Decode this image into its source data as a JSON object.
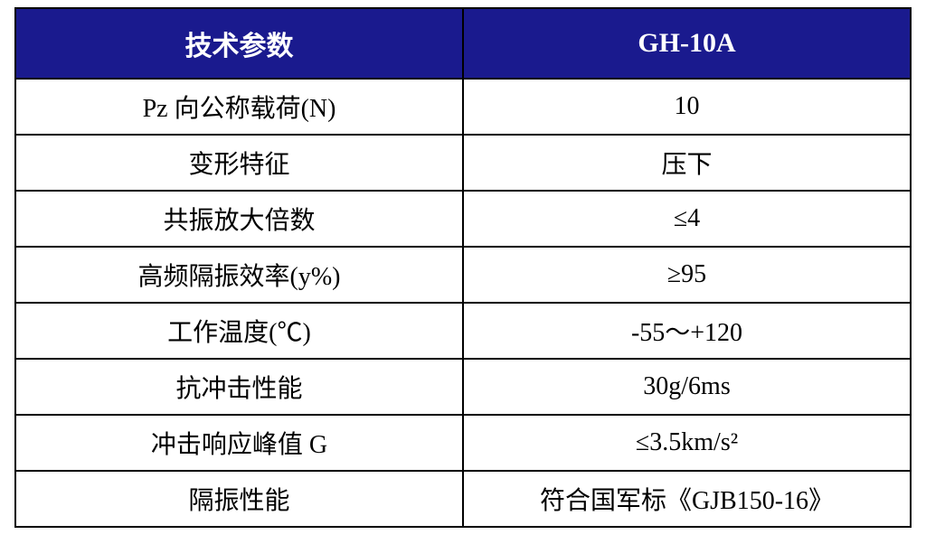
{
  "table": {
    "header_bg_color": "#1a1a8e",
    "header_text_color": "#ffffff",
    "cell_bg_color": "#ffffff",
    "cell_text_color": "#000000",
    "border_color": "#000000",
    "header_fontsize": 30,
    "cell_fontsize": 28,
    "columns": [
      "技术参数",
      "GH-10A"
    ],
    "rows": [
      [
        "Pz 向公称载荷(N)",
        "10"
      ],
      [
        "变形特征",
        "压下"
      ],
      [
        "共振放大倍数",
        "≤4"
      ],
      [
        "高频隔振效率(y%)",
        "≥95"
      ],
      [
        "工作温度(℃)",
        "-55～+120"
      ],
      [
        "抗冲击性能",
        "30g/6ms"
      ],
      [
        "冲击响应峰值 G",
        "≤3.5km/s²"
      ],
      [
        "隔振性能",
        "符合国军标《GJB150-16》"
      ]
    ]
  }
}
